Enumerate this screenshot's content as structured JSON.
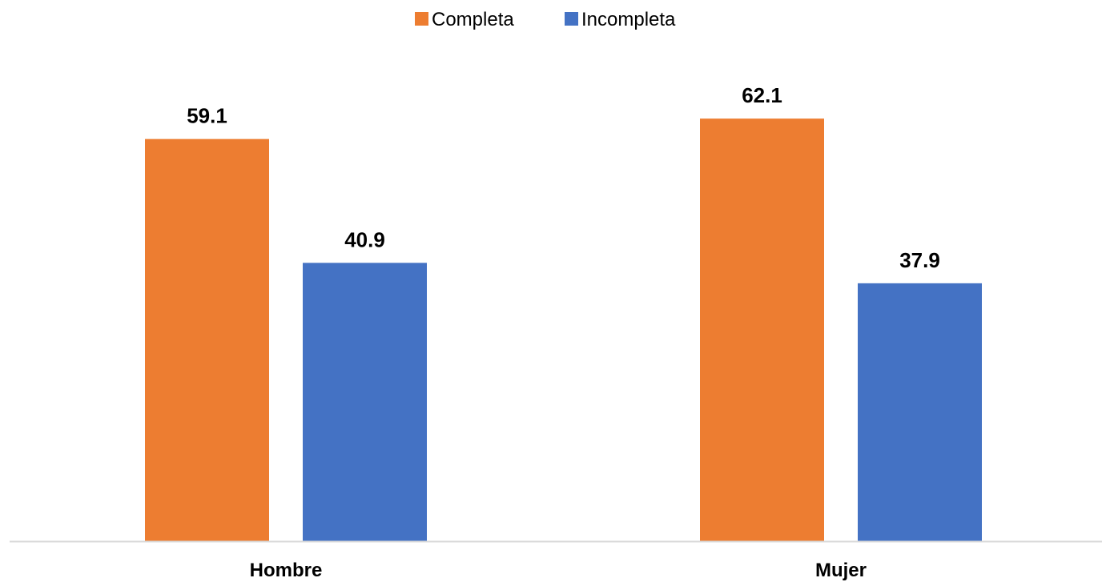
{
  "chart_data": {
    "type": "bar",
    "categories": [
      "Hombre",
      "Mujer"
    ],
    "series": [
      {
        "name": "Completa",
        "values": [
          59.1,
          62.1
        ],
        "color": "#ED7D31"
      },
      {
        "name": "Incompleta",
        "values": [
          40.9,
          37.9
        ],
        "color": "#4472C4"
      }
    ],
    "title": "",
    "xlabel": "",
    "ylabel": "",
    "ylim": [
      0,
      70
    ],
    "grid": false,
    "legend_position": "top-center",
    "axis_color": "#D9D9D9"
  }
}
